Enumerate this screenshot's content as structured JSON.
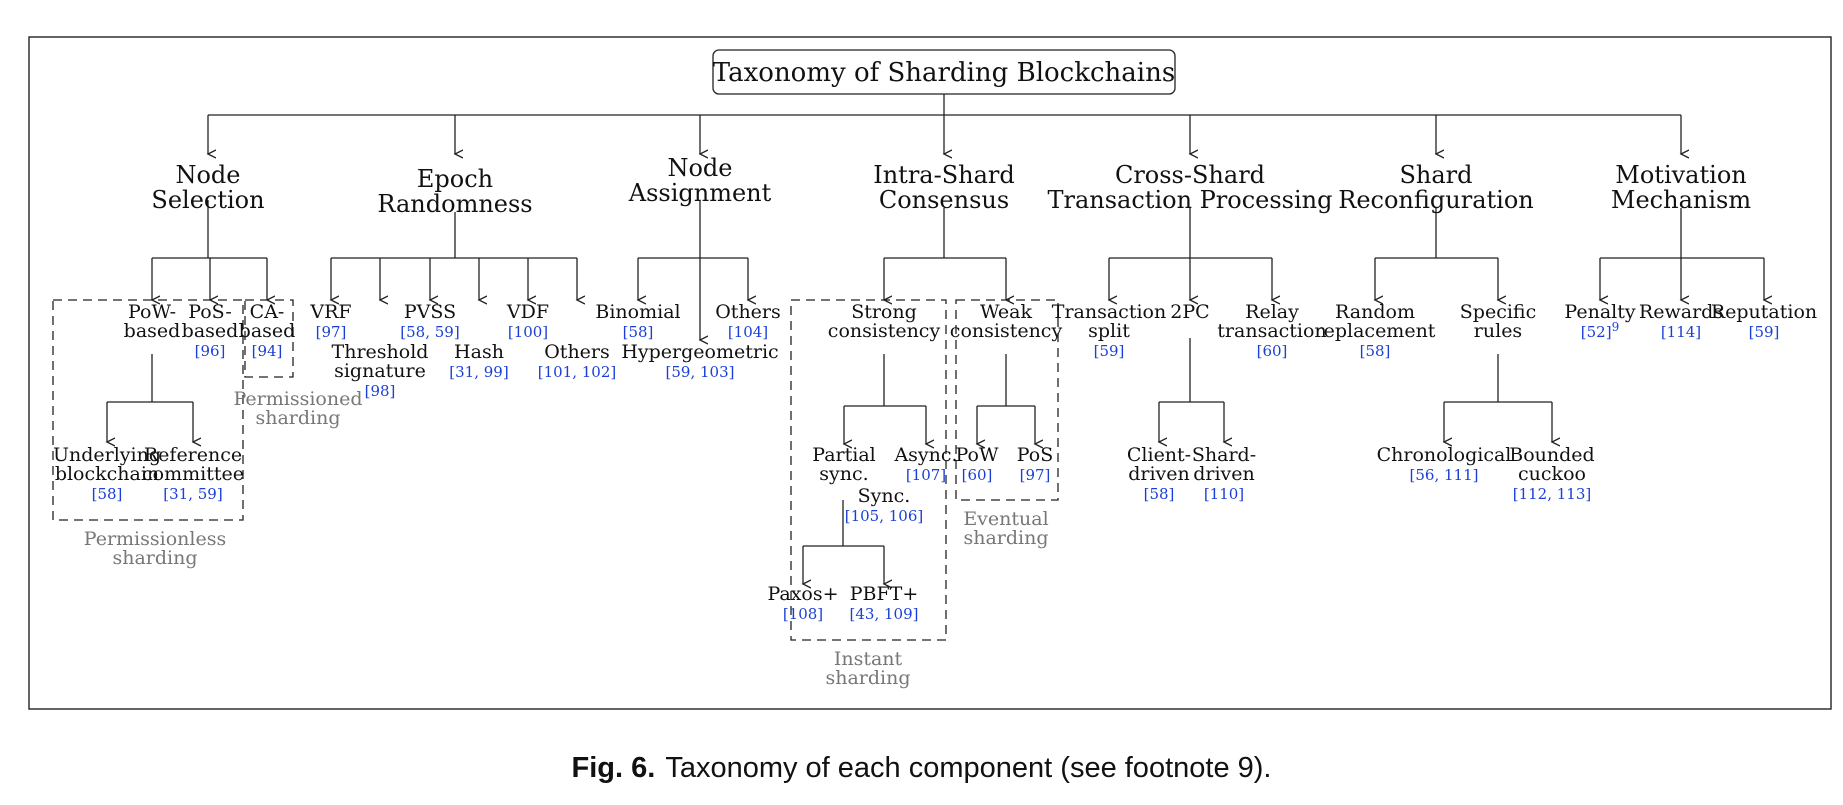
{
  "root": "Taxonomy of Sharding Blockchains",
  "categories": [
    {
      "id": "node-selection",
      "lines": [
        "Node",
        "Selection"
      ]
    },
    {
      "id": "epoch-randomness",
      "lines": [
        "Epoch",
        "Randomness"
      ]
    },
    {
      "id": "node-assignment",
      "lines": [
        "Node",
        "Assignment"
      ]
    },
    {
      "id": "intra-shard-consensus",
      "lines": [
        "Intra-Shard",
        "Consensus"
      ]
    },
    {
      "id": "cross-shard-transaction-processing",
      "lines": [
        "Cross-Shard",
        "Transaction Processing"
      ]
    },
    {
      "id": "shard-reconfiguration",
      "lines": [
        "Shard",
        "Reconfiguration"
      ]
    },
    {
      "id": "motivation-mechanism",
      "lines": [
        "Motivation",
        "Mechanism"
      ]
    }
  ],
  "leaves": [
    {
      "id": "pow-based",
      "lines": [
        "PoW-",
        "based"
      ],
      "refs": ""
    },
    {
      "id": "pos-based",
      "lines": [
        "PoS-",
        "based"
      ],
      "refs": "[96]"
    },
    {
      "id": "ca-based",
      "lines": [
        "CA-",
        "based"
      ],
      "refs": "[94]"
    },
    {
      "id": "underlying-blockchain",
      "lines": [
        "Underlying",
        "blockchain"
      ],
      "refs": "[58]"
    },
    {
      "id": "reference-committee",
      "lines": [
        "Reference",
        "committee"
      ],
      "refs": "[31, 59]"
    },
    {
      "id": "vrf",
      "lines": [
        "VRF"
      ],
      "refs": "[97]"
    },
    {
      "id": "threshold-signature",
      "lines": [
        "Threshold",
        "signature"
      ],
      "refs": "[98]"
    },
    {
      "id": "pvss",
      "lines": [
        "PVSS"
      ],
      "refs": "[58, 59]"
    },
    {
      "id": "hash",
      "lines": [
        "Hash"
      ],
      "refs": "[31, 99]"
    },
    {
      "id": "vdf",
      "lines": [
        "VDF"
      ],
      "refs": "[100]"
    },
    {
      "id": "others-epoch",
      "lines": [
        "Others"
      ],
      "refs": "[101, 102]"
    },
    {
      "id": "binomial",
      "lines": [
        "Binomial"
      ],
      "refs": "[58]"
    },
    {
      "id": "hypergeometric",
      "lines": [
        "Hypergeometric"
      ],
      "refs": "[59, 103]"
    },
    {
      "id": "others-assign",
      "lines": [
        "Others"
      ],
      "refs": "[104]"
    },
    {
      "id": "strong-consistency",
      "lines": [
        "Strong",
        "consistency"
      ],
      "refs": ""
    },
    {
      "id": "weak-consistency",
      "lines": [
        "Weak",
        "consistency"
      ],
      "refs": ""
    },
    {
      "id": "partial-sync",
      "lines": [
        "Partial",
        "sync."
      ],
      "refs": ""
    },
    {
      "id": "sync",
      "lines": [
        "Sync."
      ],
      "refs": "[105, 106]"
    },
    {
      "id": "async",
      "lines": [
        "Async."
      ],
      "refs": "[107]"
    },
    {
      "id": "paxos-plus",
      "lines": [
        "Paxos+"
      ],
      "refs": "[108]"
    },
    {
      "id": "pbft-plus",
      "lines": [
        "PBFT+"
      ],
      "refs": "[43, 109]"
    },
    {
      "id": "pow",
      "lines": [
        "PoW"
      ],
      "refs": "[60]"
    },
    {
      "id": "pos",
      "lines": [
        "PoS"
      ],
      "refs": "[97]"
    },
    {
      "id": "transaction-split",
      "lines": [
        "Transaction",
        "split"
      ],
      "refs": "[59]"
    },
    {
      "id": "two-pc",
      "lines": [
        "2PC"
      ],
      "refs": ""
    },
    {
      "id": "relay-transaction",
      "lines": [
        "Relay",
        "transaction"
      ],
      "refs": "[60]"
    },
    {
      "id": "client-driven",
      "lines": [
        "Client-",
        "driven"
      ],
      "refs": "[58]"
    },
    {
      "id": "shard-driven",
      "lines": [
        "Shard-",
        "driven"
      ],
      "refs": "[110]"
    },
    {
      "id": "random-replacement",
      "lines": [
        "Random",
        "replacement"
      ],
      "refs": "[58]"
    },
    {
      "id": "specific-rules",
      "lines": [
        "Specific",
        "rules"
      ],
      "refs": ""
    },
    {
      "id": "chronological",
      "lines": [
        "Chronological"
      ],
      "refs": "[56, 111]"
    },
    {
      "id": "bounded-cuckoo",
      "lines": [
        "Bounded",
        "cuckoo"
      ],
      "refs": "[112, 113]"
    },
    {
      "id": "penalty",
      "lines": [
        "Penalty"
      ],
      "refs": "[52]",
      "sup": "9"
    },
    {
      "id": "rewards",
      "lines": [
        "Rewards"
      ],
      "refs": "[114]"
    },
    {
      "id": "reputation",
      "lines": [
        "Reputation"
      ],
      "refs": "[59]"
    }
  ],
  "group_labels": [
    {
      "id": "permissioned",
      "lines": [
        "Permissioned",
        "sharding"
      ]
    },
    {
      "id": "permissionless",
      "lines": [
        "Permissionless",
        "sharding"
      ]
    },
    {
      "id": "instant",
      "lines": [
        "Instant",
        "sharding"
      ]
    },
    {
      "id": "eventual",
      "lines": [
        "Eventual",
        "sharding"
      ]
    }
  ],
  "caption": {
    "label": "Fig. 6.",
    "text": "Taxonomy of each component (see footnote 9)."
  },
  "colors": {
    "text": "#111111",
    "ref": "#1a3fd6",
    "group_label": "#777777",
    "line": "#222222"
  }
}
